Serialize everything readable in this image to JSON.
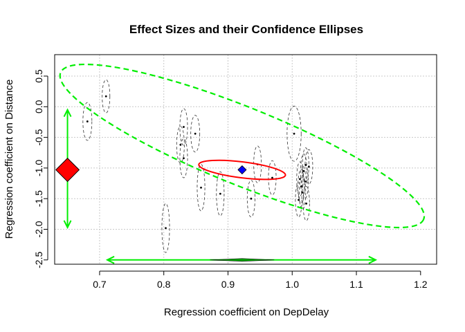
{
  "chart_data": {
    "type": "scatter",
    "title": "Effect Sizes and their Confidence Ellipses",
    "xlabel": "Regression coefficient on DepDelay",
    "ylabel": "Regression coefficient on Distance",
    "xlim": [
      0.63,
      1.225
    ],
    "ylim": [
      -2.57,
      0.85
    ],
    "x_ticks": [
      0.7,
      0.8,
      0.9,
      1.0,
      1.1,
      1.2
    ],
    "x_tick_labels": [
      "0.7",
      "0.8",
      "0.9",
      "1.0",
      "1.1",
      "1.2"
    ],
    "y_ticks": [
      0.5,
      0.0,
      -0.5,
      -1.0,
      -1.5,
      -2.0,
      -2.5
    ],
    "y_tick_labels": [
      "0.5",
      "0.0",
      "-0.5",
      "-1.0",
      "-1.5",
      "-2.0",
      "-2.5"
    ],
    "grid": true,
    "grid_x": [
      0.7,
      0.8,
      0.9,
      1.0,
      1.1
    ],
    "grid_y": [
      0.5,
      0.0,
      -0.5,
      -1.0,
      -1.5,
      -2.0
    ],
    "points": [
      {
        "x": 0.681,
        "y": -0.24,
        "rx": 0.007,
        "ry": 0.31
      },
      {
        "x": 0.71,
        "y": 0.17,
        "rx": 0.006,
        "ry": 0.27
      },
      {
        "x": 0.803,
        "y": -1.98,
        "rx": 0.006,
        "ry": 0.4
      },
      {
        "x": 0.826,
        "y": -0.62,
        "rx": 0.006,
        "ry": 0.3
      },
      {
        "x": 0.831,
        "y": -0.33,
        "rx": 0.006,
        "ry": 0.3
      },
      {
        "x": 0.831,
        "y": -0.84,
        "rx": 0.006,
        "ry": 0.32
      },
      {
        "x": 0.849,
        "y": -0.44,
        "rx": 0.007,
        "ry": 0.3
      },
      {
        "x": 0.858,
        "y": -1.32,
        "rx": 0.006,
        "ry": 0.38
      },
      {
        "x": 0.888,
        "y": -1.42,
        "rx": 0.006,
        "ry": 0.36
      },
      {
        "x": 0.936,
        "y": -1.5,
        "rx": 0.006,
        "ry": 0.3
      },
      {
        "x": 0.946,
        "y": -0.94,
        "rx": 0.006,
        "ry": 0.3
      },
      {
        "x": 0.969,
        "y": -1.16,
        "rx": 0.006,
        "ry": 0.28
      },
      {
        "x": 1.003,
        "y": -0.44,
        "rx": 0.011,
        "ry": 0.45
      },
      {
        "x": 1.01,
        "y": -1.52,
        "rx": 0.005,
        "ry": 0.28
      },
      {
        "x": 1.012,
        "y": -1.18,
        "rx": 0.005,
        "ry": 0.28
      },
      {
        "x": 1.014,
        "y": -1.3,
        "rx": 0.005,
        "ry": 0.28
      },
      {
        "x": 1.016,
        "y": -1.4,
        "rx": 0.005,
        "ry": 0.28
      },
      {
        "x": 1.018,
        "y": -1.05,
        "rx": 0.005,
        "ry": 0.28
      },
      {
        "x": 1.02,
        "y": -1.22,
        "rx": 0.005,
        "ry": 0.28
      },
      {
        "x": 1.021,
        "y": -0.95,
        "rx": 0.005,
        "ry": 0.28
      },
      {
        "x": 1.022,
        "y": -1.58,
        "rx": 0.005,
        "ry": 0.28
      },
      {
        "x": 1.026,
        "y": -0.98,
        "rx": 0.006,
        "ry": 0.28
      }
    ],
    "pooled_estimate": {
      "x": 0.922,
      "y": -1.03,
      "color": "#0000ff"
    },
    "red_ellipse": {
      "cx": 0.922,
      "cy": -1.03,
      "rx": 0.068,
      "ry": 0.13,
      "tilt_deg": 7,
      "color": "#ff0000"
    },
    "green_ellipse": {
      "cx": 0.922,
      "cy": -0.64,
      "rx": 0.305,
      "ry": 0.63,
      "tilt_deg": 22,
      "color": "#00ee00"
    },
    "x_interval": {
      "from": 0.712,
      "to": 1.13,
      "y": -2.5,
      "color": "#00ee00"
    },
    "y_interval": {
      "from": -1.97,
      "to": -0.05,
      "x": 0.65,
      "color": "#00ee00"
    },
    "x_diamond": {
      "center": 0.922,
      "halfwidth": 0.05,
      "color": "#00aa00"
    },
    "y_diamond": {
      "center": -1.03,
      "halfheight": 0.19,
      "color": "#ff0000"
    }
  }
}
